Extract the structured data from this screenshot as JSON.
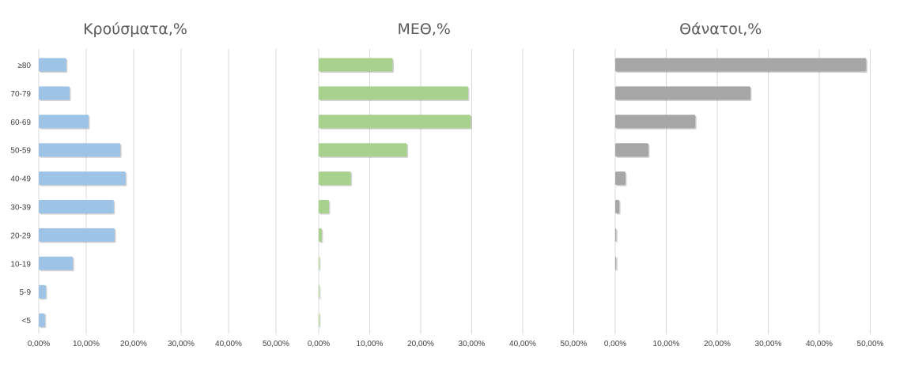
{
  "chart_data": [
    {
      "type": "bar",
      "orientation": "horizontal",
      "title": "Κρούσματα,%",
      "categories": [
        "≥80",
        "70-79",
        "60-69",
        "50-59",
        "40-49",
        "30-39",
        "20-29",
        "10-19",
        "5-9",
        "<5"
      ],
      "values": [
        5.8,
        6.5,
        10.5,
        17.2,
        18.3,
        15.8,
        16.0,
        7.2,
        1.5,
        1.3
      ],
      "xlim": [
        0,
        55
      ],
      "x_ticks": [
        "0,00%",
        "10,00%",
        "20,00%",
        "30,00%",
        "40,00%",
        "50,00%"
      ],
      "color": "#9dc3e6",
      "grid": true
    },
    {
      "type": "bar",
      "orientation": "horizontal",
      "title": "ΜΕΘ,%",
      "categories": [
        "≥80",
        "70-79",
        "60-69",
        "50-59",
        "40-49",
        "30-39",
        "20-29",
        "10-19",
        "5-9",
        "<5"
      ],
      "values": [
        14.5,
        29.3,
        29.8,
        17.3,
        6.3,
        2.0,
        0.6,
        0.1,
        0.1,
        0.1
      ],
      "xlim": [
        0,
        55
      ],
      "x_ticks": [
        "0,00%",
        "10,00%",
        "20,00%",
        "30,00%",
        "40,00%",
        "50,00%"
      ],
      "color": "#a9d18e",
      "grid": true
    },
    {
      "type": "bar",
      "orientation": "horizontal",
      "title": "Θάνατοι,%",
      "categories": [
        "≥80",
        "70-79",
        "60-69",
        "50-59",
        "40-49",
        "30-39",
        "20-29",
        "10-19",
        "5-9",
        "<5"
      ],
      "values": [
        49.2,
        26.5,
        15.7,
        6.5,
        2.0,
        0.8,
        0.2,
        0.2,
        0,
        0
      ],
      "xlim": [
        0,
        52
      ],
      "x_ticks": [
        "0,00%",
        "10,00%",
        "20,00%",
        "30,00%",
        "40,00%",
        "50,00%"
      ],
      "color": "#a6a6a6",
      "grid": true
    }
  ]
}
